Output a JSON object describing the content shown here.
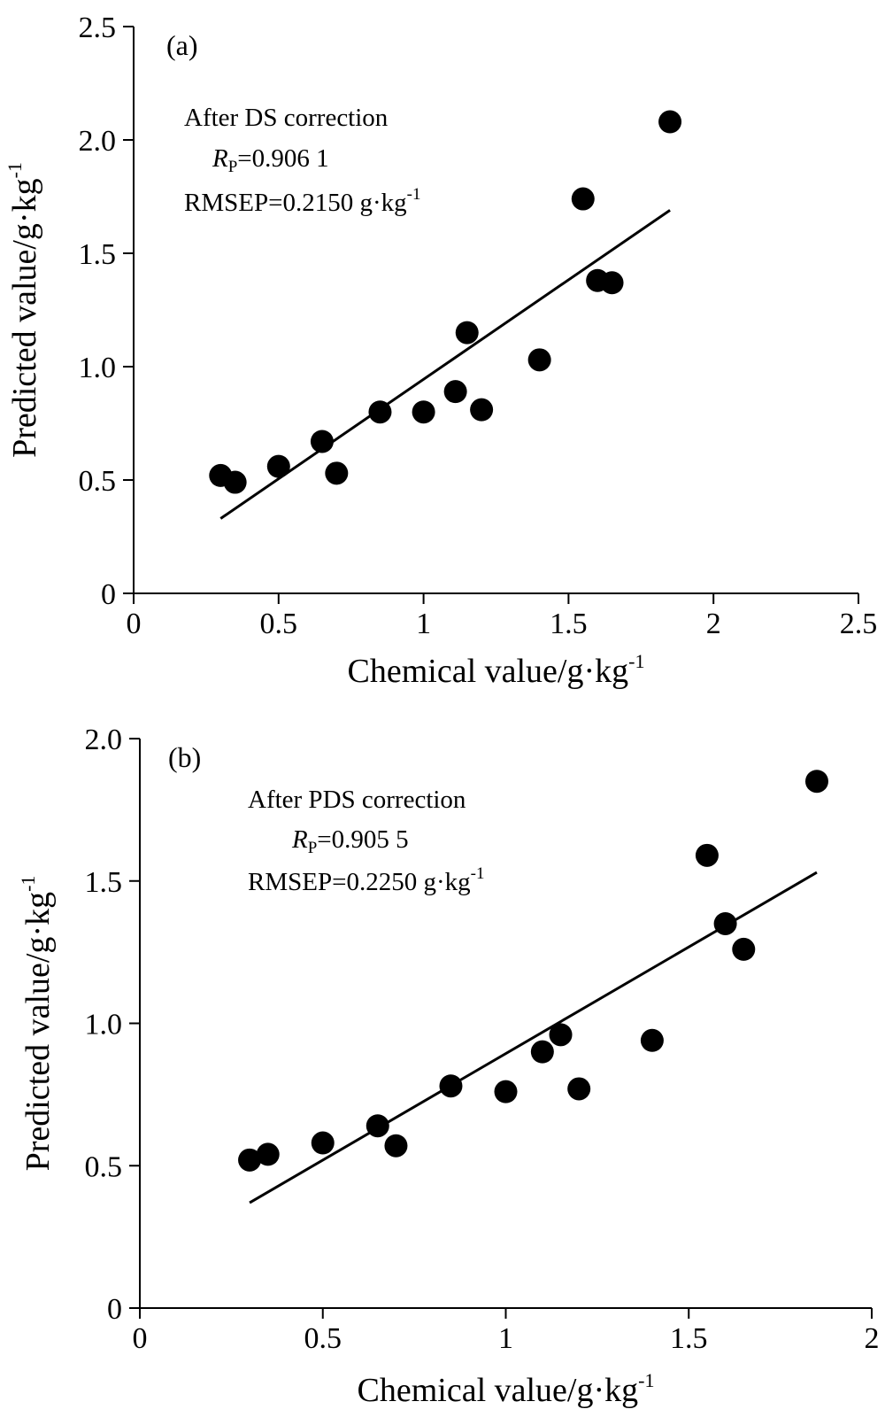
{
  "chart_data": [
    {
      "type": "scatter",
      "panel_label": "(a)",
      "annotation": {
        "line1": "After DS correction",
        "rp_symbol": "R",
        "rp_sub": "P",
        "rp_value": "=0.906 1",
        "rmsep_text": "RMSEP=0.2150 g·kg",
        "rmsep_sup": "-1"
      },
      "xlabel": "Chemical value/g·kg",
      "xlabel_sup": "-1",
      "ylabel": "Predicted value/g·kg",
      "ylabel_sup": "-1",
      "xlim": [
        0,
        2.5
      ],
      "ylim": [
        0,
        2.5
      ],
      "xticks": [
        "0",
        "0.5",
        "1",
        "1.5",
        "2",
        "2.5"
      ],
      "yticks": [
        "0",
        "0.5",
        "1.0",
        "1.5",
        "2.0",
        "2.5"
      ],
      "grid": false,
      "points": [
        {
          "x": 0.3,
          "y": 0.52
        },
        {
          "x": 0.35,
          "y": 0.49
        },
        {
          "x": 0.5,
          "y": 0.56
        },
        {
          "x": 0.65,
          "y": 0.67
        },
        {
          "x": 0.7,
          "y": 0.53
        },
        {
          "x": 0.85,
          "y": 0.8
        },
        {
          "x": 1.0,
          "y": 0.8
        },
        {
          "x": 1.11,
          "y": 0.89
        },
        {
          "x": 1.15,
          "y": 1.15
        },
        {
          "x": 1.2,
          "y": 0.81
        },
        {
          "x": 1.4,
          "y": 1.03
        },
        {
          "x": 1.55,
          "y": 1.74
        },
        {
          "x": 1.6,
          "y": 1.38
        },
        {
          "x": 1.65,
          "y": 1.37
        },
        {
          "x": 1.85,
          "y": 2.08
        }
      ],
      "fit_line": {
        "x": [
          0.3,
          1.85
        ],
        "y": [
          0.33,
          1.69
        ]
      }
    },
    {
      "type": "scatter",
      "panel_label": "(b)",
      "annotation": {
        "line1": "After PDS correction",
        "rp_symbol": "R",
        "rp_sub": "P",
        "rp_value": "=0.905 5",
        "rmsep_text": "RMSEP=0.2250 g·kg",
        "rmsep_sup": "-1"
      },
      "xlabel": "Chemical value/g·kg",
      "xlabel_sup": "-1",
      "ylabel": "Predicted value/g·kg",
      "ylabel_sup": "-1",
      "xlim": [
        0,
        2
      ],
      "ylim": [
        0,
        2
      ],
      "xticks": [
        "0",
        "0.5",
        "1",
        "1.5",
        "2"
      ],
      "yticks": [
        "0",
        "0.5",
        "1.0",
        "1.5",
        "2.0"
      ],
      "grid": false,
      "points": [
        {
          "x": 0.3,
          "y": 0.52
        },
        {
          "x": 0.35,
          "y": 0.54
        },
        {
          "x": 0.5,
          "y": 0.58
        },
        {
          "x": 0.65,
          "y": 0.64
        },
        {
          "x": 0.7,
          "y": 0.57
        },
        {
          "x": 0.85,
          "y": 0.78
        },
        {
          "x": 1.0,
          "y": 0.76
        },
        {
          "x": 1.1,
          "y": 0.9
        },
        {
          "x": 1.15,
          "y": 0.96
        },
        {
          "x": 1.2,
          "y": 0.77
        },
        {
          "x": 1.4,
          "y": 0.94
        },
        {
          "x": 1.55,
          "y": 1.59
        },
        {
          "x": 1.6,
          "y": 1.35
        },
        {
          "x": 1.65,
          "y": 1.26
        },
        {
          "x": 1.85,
          "y": 1.85
        }
      ],
      "fit_line": {
        "x": [
          0.3,
          1.85
        ],
        "y": [
          0.37,
          1.53
        ]
      }
    }
  ]
}
